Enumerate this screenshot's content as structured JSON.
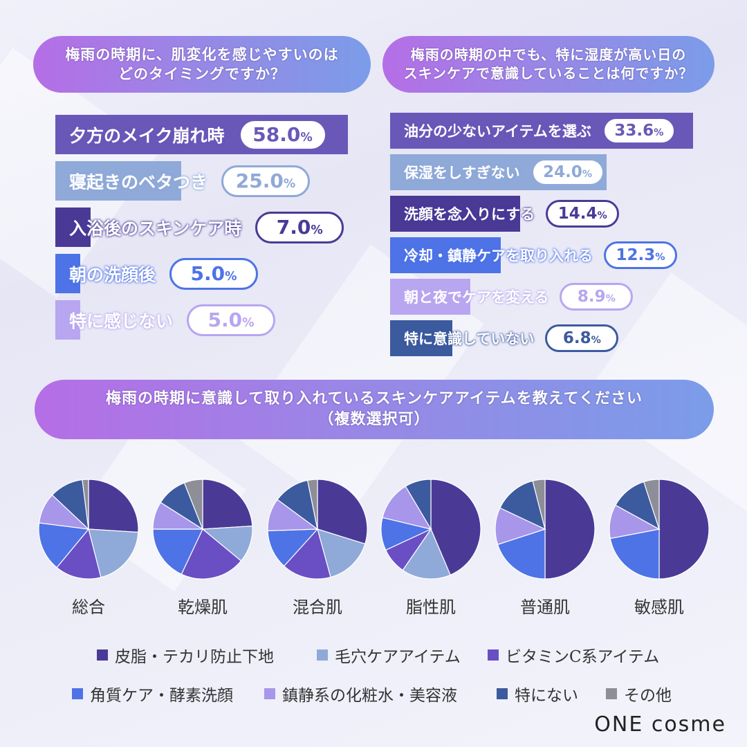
{
  "colors": {
    "sebum_primer": "#4a3a96",
    "pore_care": "#8fa9d8",
    "vitamin_c": "#6a4ec4",
    "exfoliation": "#4d73e6",
    "soothing": "#a896ea",
    "none": "#3c5a9e",
    "other": "#8e8e98"
  },
  "left_panel": {
    "question_line1": "梅雨の時期に、肌変化を感じやすいのは",
    "question_line2": "どのタイミングですか？"
  },
  "right_panel": {
    "question_line1": "梅雨の時期の中でも、特に湿度が高い日の",
    "question_line2": "スキンケアで意識していることは何ですか？"
  },
  "bottom_panel": {
    "question_line1": "梅雨の時期に意識して取り入れているスキンケアアイテムを教えてください",
    "question_line2": "（複数選択可）"
  },
  "chart_data": [
    {
      "type": "bar",
      "orientation": "horizontal",
      "title": "梅雨の時期に、肌変化を感じやすいのはどのタイミングですか？",
      "unit": "%",
      "xlim": [
        0,
        100
      ],
      "categories": [
        "夕方のメイク崩れ時",
        "寝起きのベタつき",
        "入浴後のスキンケア時",
        "朝の洗顔後",
        "特に感じない"
      ],
      "values": [
        58.0,
        25.0,
        7.0,
        5.0,
        5.0
      ],
      "display_values": [
        "58.0",
        "25.0",
        "7.0",
        "5.0",
        "5.0"
      ],
      "bar_colors": [
        "#6a58b8",
        "#8fa9d8",
        "#4a3a96",
        "#4d73e6",
        "#b8a6f0"
      ]
    },
    {
      "type": "bar",
      "orientation": "horizontal",
      "title": "梅雨の時期の中でも、特に湿度が高い日のスキンケアで意識していることは何ですか？",
      "unit": "%",
      "xlim": [
        0,
        100
      ],
      "categories": [
        "油分の少ないアイテムを選ぶ",
        "保湿をしすぎない",
        "洗顔を念入りにする",
        "冷却・鎮静ケアを取り入れる",
        "朝と夜でケアを変える",
        "特に意識していない"
      ],
      "values": [
        33.6,
        24.0,
        14.4,
        12.3,
        8.9,
        6.8
      ],
      "display_values": [
        "33.6",
        "24.0",
        "14.4",
        "12.3",
        "8.9",
        "6.8"
      ],
      "bar_colors": [
        "#6a58b8",
        "#8fa9d8",
        "#4a3a96",
        "#4d73e6",
        "#b8a6f0",
        "#3c5a9e"
      ]
    },
    {
      "type": "pie",
      "title": "梅雨の時期に意識して取り入れているスキンケアアイテムを教えてください（複数選択可）",
      "legend_position": "bottom",
      "categories": [
        "皮脂・テカリ防止下地",
        "毛穴ケアアイテム",
        "ビタミンC系アイテム",
        "角質ケア・酵素洗顔",
        "鎮静系の化粧水・美容液",
        "特にない",
        "その他"
      ],
      "legend_order": [
        "皮脂・テカリ防止下地",
        "毛穴ケアアイテム",
        "ビタミンC系アイテム",
        "角質ケア・酵素洗顔",
        "鎮静系の化粧水・美容液",
        "特にない",
        "その他"
      ],
      "series": [
        {
          "name": "総合",
          "values": [
            26,
            20,
            15,
            16,
            10,
            11,
            2
          ]
        },
        {
          "name": "乾燥肌",
          "values": [
            24,
            12,
            21,
            18,
            9,
            10,
            6
          ]
        },
        {
          "name": "混合肌",
          "values": [
            28,
            15,
            15,
            12,
            10,
            11,
            3
          ]
        },
        {
          "name": "脂性肌",
          "values": [
            41,
            15,
            8,
            10,
            12,
            8,
            0
          ]
        },
        {
          "name": "普通肌",
          "values": [
            50,
            0,
            0,
            20,
            12,
            14,
            4
          ]
        },
        {
          "name": "敏感肌",
          "values": [
            50,
            0,
            0,
            22,
            11,
            12,
            5
          ]
        }
      ]
    }
  ],
  "legend": {
    "items": [
      "皮脂・テカリ防止下地",
      "毛穴ケアアイテム",
      "ビタミンC系アイテム",
      "角質ケア・酵素洗顔",
      "鎮静系の化粧水・美容液",
      "特にない",
      "その他"
    ]
  },
  "brand": {
    "logo_text": "ONE cosme"
  }
}
